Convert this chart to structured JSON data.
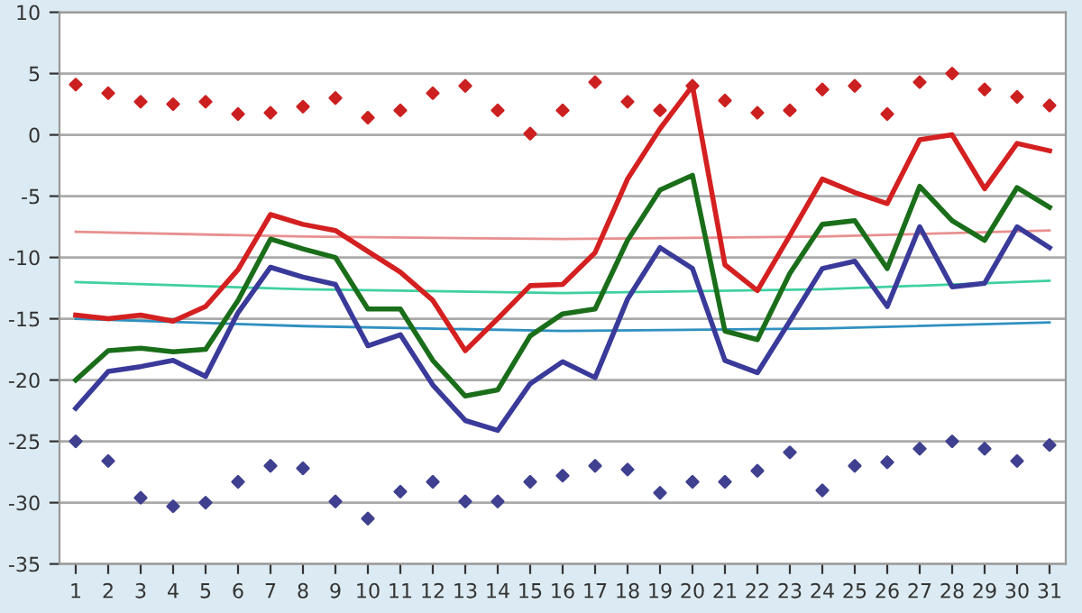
{
  "chart_data": {
    "type": "line",
    "x": [
      1,
      2,
      3,
      4,
      5,
      6,
      7,
      8,
      9,
      10,
      11,
      12,
      13,
      14,
      15,
      16,
      17,
      18,
      19,
      20,
      21,
      22,
      23,
      24,
      25,
      26,
      27,
      28,
      29,
      30,
      31
    ],
    "xlim": [
      0.5,
      31.5
    ],
    "xticks": [
      1,
      2,
      3,
      4,
      5,
      6,
      7,
      8,
      9,
      10,
      11,
      12,
      13,
      14,
      15,
      16,
      17,
      18,
      19,
      20,
      21,
      22,
      23,
      24,
      25,
      26,
      27,
      28,
      29,
      30,
      31
    ],
    "ylim": [
      -35,
      10
    ],
    "yticks": [
      -35,
      -30,
      -25,
      -20,
      -15,
      -10,
      -5,
      0,
      5,
      10
    ],
    "grid": "y",
    "marker": "none",
    "line_style": "solid",
    "series": [
      {
        "color": "#e89090",
        "x": [
          1,
          8,
          16,
          24,
          31
        ],
        "values": [
          -7.9,
          -8.3,
          -8.5,
          -8.3,
          -7.8
        ]
      },
      {
        "color": "#40d0a0",
        "x": [
          1,
          8,
          16,
          24,
          31
        ],
        "values": [
          -12,
          -12.6,
          -12.9,
          -12.6,
          -11.9
        ]
      },
      {
        "color": "#3090c0",
        "x": [
          1,
          8,
          16,
          24,
          31
        ],
        "values": [
          -15,
          -15.6,
          -16,
          -15.8,
          -15.3
        ]
      },
      {
        "color": "#d42020",
        "values": [
          -14.7,
          -15,
          -14.7,
          -15.2,
          -14,
          -11,
          -6.5,
          -7.3,
          -7.8,
          -9.5,
          -11.2,
          -13.5,
          -17.6,
          -15,
          -12.3,
          -12.2,
          -9.6,
          -3.6,
          0.5,
          4,
          -10.6,
          -12.7,
          -8.2,
          -3.6,
          -4.7,
          -5.6,
          -0.4,
          0,
          -4.4,
          -0.7,
          -1.3
        ]
      },
      {
        "color": "#1a6e1a",
        "values": [
          -20,
          -17.6,
          -17.4,
          -17.7,
          -17.5,
          -13.5,
          -8.5,
          -9.3,
          -10,
          -14.2,
          -14.2,
          -18.4,
          -21.3,
          -20.8,
          -16.4,
          -14.6,
          -14.2,
          -8.6,
          -4.5,
          -3.3,
          -16,
          -16.7,
          -11.3,
          -7.3,
          -7,
          -10.9,
          -4.2,
          -7,
          -8.6,
          -4.3,
          -5.9
        ]
      },
      {
        "color": "#3a3a9a",
        "values": [
          -22.3,
          -19.3,
          -18.9,
          -18.4,
          -19.7,
          -14.5,
          -10.8,
          -11.6,
          -12.2,
          -17.2,
          -16.3,
          -20.4,
          -23.3,
          -24.1,
          -20.3,
          -18.5,
          -19.8,
          -13.4,
          -9.2,
          -10.9,
          -18.4,
          -19.4,
          -15.2,
          -10.9,
          -10.3,
          -14,
          -7.5,
          -12.4,
          -12.1,
          -7.5,
          -9.2
        ]
      },
      {
        "type": "scatter",
        "marker": "diamond",
        "color": "#cc2020",
        "values": [
          4.1,
          3.4,
          2.7,
          2.5,
          2.7,
          1.7,
          1.8,
          2.3,
          3,
          1.4,
          2,
          3.4,
          4,
          2,
          0.1,
          2,
          4.3,
          2.7,
          2,
          4,
          2.8,
          1.8,
          2,
          3.7,
          4,
          1.7,
          4.3,
          5,
          3.7,
          3.1,
          2.4
        ]
      },
      {
        "type": "scatter",
        "marker": "diamond",
        "color": "#404090",
        "values": [
          -25,
          -26.6,
          -29.6,
          -30.3,
          -30,
          -28.3,
          -27,
          -27.2,
          -29.9,
          -31.3,
          -29.1,
          -28.3,
          -29.9,
          -29.9,
          -28.3,
          -27.8,
          -27,
          -27.3,
          -29.2,
          -28.3,
          -28.3,
          -27.4,
          -25.9,
          -29,
          -27,
          -26.7,
          -25.6,
          -25,
          -25.6,
          -26.6,
          -25.3
        ]
      }
    ]
  }
}
